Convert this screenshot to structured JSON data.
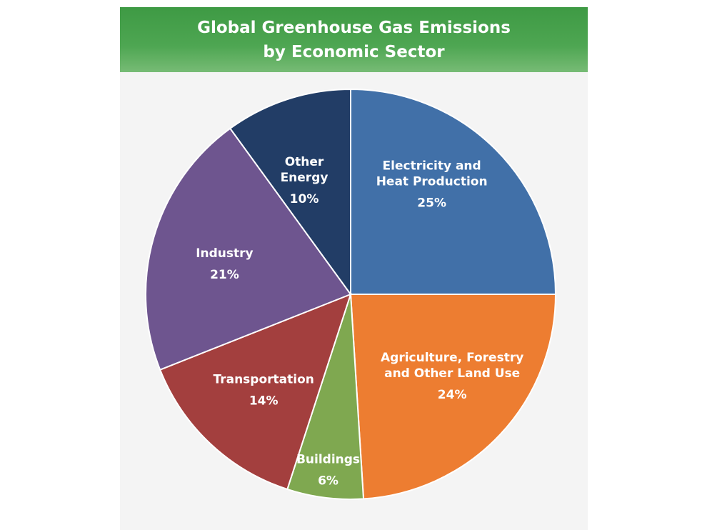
{
  "chart_data": {
    "type": "pie",
    "title": "Global Greenhouse Gas Emissions",
    "subtitle": "by Economic Sector",
    "slices": [
      {
        "label_lines": [
          "Electricity and",
          "Heat Production"
        ],
        "value": 25,
        "value_label": "25%",
        "color": "#4170a8"
      },
      {
        "label_lines": [
          "Agriculture, Forestry",
          "and Other Land Use"
        ],
        "value": 24,
        "value_label": "24%",
        "color": "#ed7d31"
      },
      {
        "label_lines": [
          "Buildings"
        ],
        "value": 6,
        "value_label": "6%",
        "color": "#7fa850"
      },
      {
        "label_lines": [
          "Transportation"
        ],
        "value": 14,
        "value_label": "14%",
        "color": "#a33f3e"
      },
      {
        "label_lines": [
          "Industry"
        ],
        "value": 21,
        "value_label": "21%",
        "color": "#6e558f"
      },
      {
        "label_lines": [
          "Other",
          "Energy"
        ],
        "value": 10,
        "value_label": "10%",
        "color": "#223d66"
      }
    ]
  }
}
